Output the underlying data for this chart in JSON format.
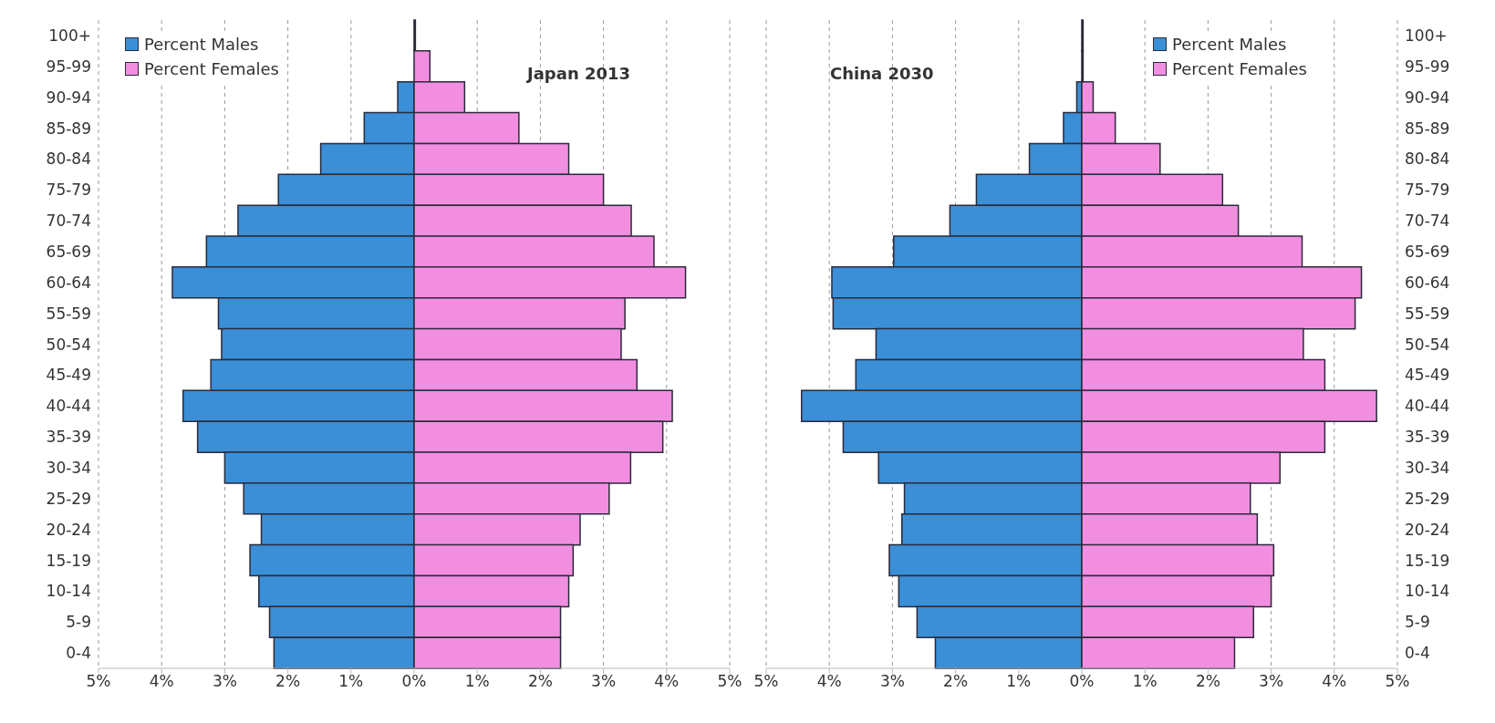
{
  "chart_data": [
    {
      "type": "bar",
      "orientation": "horizontal",
      "stacked": true,
      "annotations": [
        "Japan 2013"
      ],
      "categories": [
        "100+",
        "95-99",
        "90-94",
        "85-89",
        "80-84",
        "75-79",
        "70-74",
        "65-69",
        "60-64",
        "55-59",
        "50-54",
        "45-49",
        "40-44",
        "35-39",
        "30-34",
        "25-29",
        "20-24",
        "15-19",
        "10-14",
        "5-9",
        "0-4"
      ],
      "series": [
        {
          "name": "Percent Males",
          "color": "#3a8fd6",
          "values": [
            null,
            null,
            -0.26,
            -0.79,
            -1.48,
            -2.15,
            -2.79,
            -3.29,
            -3.83,
            -3.1,
            -3.05,
            -3.22,
            -3.66,
            -3.43,
            -3.0,
            -2.7,
            -2.42,
            -2.6,
            -2.46,
            -2.29,
            -2.22
          ]
        },
        {
          "name": "Percent Females",
          "color": "#f28ee0",
          "values": [
            0.02,
            0.25,
            0.8,
            1.66,
            2.45,
            3.0,
            3.44,
            3.8,
            4.3,
            3.34,
            3.28,
            3.53,
            4.09,
            3.94,
            3.43,
            3.09,
            2.63,
            2.52,
            2.45,
            2.32,
            2.32
          ]
        }
      ],
      "xlim": [
        -5,
        5
      ],
      "xticks": [
        {
          "value": -5,
          "label": "5%"
        },
        {
          "value": -4,
          "label": "4%"
        },
        {
          "value": -3,
          "label": "3%"
        },
        {
          "value": -2,
          "label": "2%"
        },
        {
          "value": -1,
          "label": "1%"
        },
        {
          "value": 0,
          "label": "0%"
        },
        {
          "value": 1,
          "label": "1%"
        },
        {
          "value": 2,
          "label": "2%"
        },
        {
          "value": 3,
          "label": "3%"
        },
        {
          "value": 4,
          "label": "4%"
        },
        {
          "value": 5,
          "label": "5%"
        }
      ],
      "grid": "x",
      "legend": "top left"
    },
    {
      "type": "bar",
      "orientation": "horizontal",
      "stacked": true,
      "annotations": [
        "China 2030"
      ],
      "categories": [
        "100+",
        "95-99",
        "90-94",
        "85-89",
        "80-84",
        "75-79",
        "70-74",
        "65-69",
        "60-64",
        "55-59",
        "50-54",
        "45-49",
        "40-44",
        "35-39",
        "30-34",
        "25-29",
        "20-24",
        "15-19",
        "10-14",
        "5-9",
        "0-4"
      ],
      "series": [
        {
          "name": "Percent Males",
          "color": "#3a8fd6",
          "values": [
            null,
            null,
            -0.08,
            -0.29,
            -0.83,
            -1.67,
            -2.09,
            -2.98,
            -3.96,
            -3.94,
            -3.26,
            -3.58,
            -4.44,
            -3.78,
            -3.22,
            -2.81,
            -2.85,
            -3.05,
            -2.9,
            -2.61,
            -2.32
          ]
        },
        {
          "name": "Percent Females",
          "color": "#f28ee0",
          "values": [
            0.02,
            0.02,
            0.18,
            0.53,
            1.24,
            2.23,
            2.48,
            3.49,
            4.43,
            4.33,
            3.51,
            3.85,
            4.67,
            3.85,
            3.14,
            2.67,
            2.78,
            3.04,
            3.0,
            2.72,
            2.42
          ]
        }
      ],
      "xlim": [
        -5,
        5
      ],
      "xticks": [
        {
          "value": -5,
          "label": "5%"
        },
        {
          "value": -4,
          "label": "4%"
        },
        {
          "value": -3,
          "label": "3%"
        },
        {
          "value": -2,
          "label": "2%"
        },
        {
          "value": -1,
          "label": "1%"
        },
        {
          "value": 0,
          "label": "0%"
        },
        {
          "value": 1,
          "label": "1%"
        },
        {
          "value": 2,
          "label": "2%"
        },
        {
          "value": 3,
          "label": "3%"
        },
        {
          "value": 4,
          "label": "4%"
        },
        {
          "value": 5,
          "label": "5%"
        }
      ],
      "grid": "x",
      "legend": "top right"
    }
  ]
}
